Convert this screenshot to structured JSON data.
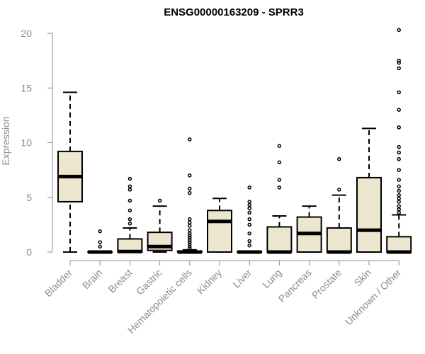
{
  "chart_data": {
    "type": "box",
    "title": "ENSG00000163209 - SPRR3",
    "xlabel": "",
    "ylabel": "Expression",
    "ylim": [
      0,
      20.5
    ],
    "yticks": [
      0,
      5,
      10,
      15,
      20
    ],
    "grid": false,
    "legend": "none",
    "box_fill": "#ede6cf",
    "median_color": "#000000",
    "categories": [
      "Bladder",
      "Brain",
      "Breast",
      "Gastric",
      "Hematopoietic cells",
      "Kidney",
      "Liver",
      "Lung",
      "Pancreas",
      "Prostate",
      "Skin",
      "Unknown / Other"
    ],
    "boxes": [
      {
        "whisker_low": 0.0,
        "q1": 4.6,
        "median": 6.9,
        "q3": 9.2,
        "whisker_high": 14.6,
        "outliers": []
      },
      {
        "whisker_low": 0.0,
        "q1": 0.0,
        "median": 0.0,
        "q3": 0.0,
        "whisker_high": 0.0,
        "outliers": [
          0.5,
          0.9,
          1.9
        ]
      },
      {
        "whisker_low": 0.0,
        "q1": 0.0,
        "median": 0.05,
        "q3": 1.2,
        "whisker_high": 2.2,
        "outliers": [
          2.6,
          3.0,
          3.8,
          4.7,
          5.7,
          6.0,
          6.7
        ]
      },
      {
        "whisker_low": 0.0,
        "q1": 0.15,
        "median": 0.5,
        "q3": 1.8,
        "whisker_high": 4.2,
        "outliers": [
          4.7
        ]
      },
      {
        "whisker_low": 0.0,
        "q1": 0.0,
        "median": 0.0,
        "q3": 0.1,
        "whisker_high": 0.2,
        "outliers": [
          0.3,
          0.5,
          0.7,
          0.9,
          1.1,
          1.3,
          1.5,
          1.7,
          2.0,
          2.4,
          2.7,
          3.0,
          5.4,
          5.8,
          7.0,
          10.3
        ]
      },
      {
        "whisker_low": 0.0,
        "q1": 0.0,
        "median": 2.8,
        "q3": 3.8,
        "whisker_high": 4.9,
        "outliers": []
      },
      {
        "whisker_low": 0.0,
        "q1": 0.0,
        "median": 0.0,
        "q3": 0.05,
        "whisker_high": 0.1,
        "outliers": [
          0.6,
          1.0,
          1.7,
          2.5,
          3.0,
          3.6,
          4.0,
          4.3,
          4.6,
          5.9
        ]
      },
      {
        "whisker_low": 0.0,
        "q1": 0.0,
        "median": 0.0,
        "q3": 2.3,
        "whisker_high": 3.3,
        "outliers": [
          5.9,
          6.6,
          8.2,
          9.7
        ]
      },
      {
        "whisker_low": 0.0,
        "q1": 0.0,
        "median": 1.7,
        "q3": 3.2,
        "whisker_high": 4.2,
        "outliers": []
      },
      {
        "whisker_low": 0.0,
        "q1": 0.0,
        "median": 0.0,
        "q3": 2.2,
        "whisker_high": 5.2,
        "outliers": [
          5.7,
          8.5
        ]
      },
      {
        "whisker_low": 0.0,
        "q1": 0.0,
        "median": 2.0,
        "q3": 6.8,
        "whisker_high": 11.3,
        "outliers": []
      },
      {
        "whisker_low": 0.0,
        "q1": 0.0,
        "median": 0.0,
        "q3": 1.4,
        "whisker_high": 3.4,
        "outliers": [
          3.6,
          3.9,
          4.2,
          4.6,
          4.9,
          5.2,
          5.6,
          6.0,
          6.6,
          7.5,
          8.5,
          9.1,
          9.6,
          11.4,
          13.0,
          14.6,
          16.8,
          17.3,
          17.5,
          20.3
        ]
      }
    ]
  }
}
